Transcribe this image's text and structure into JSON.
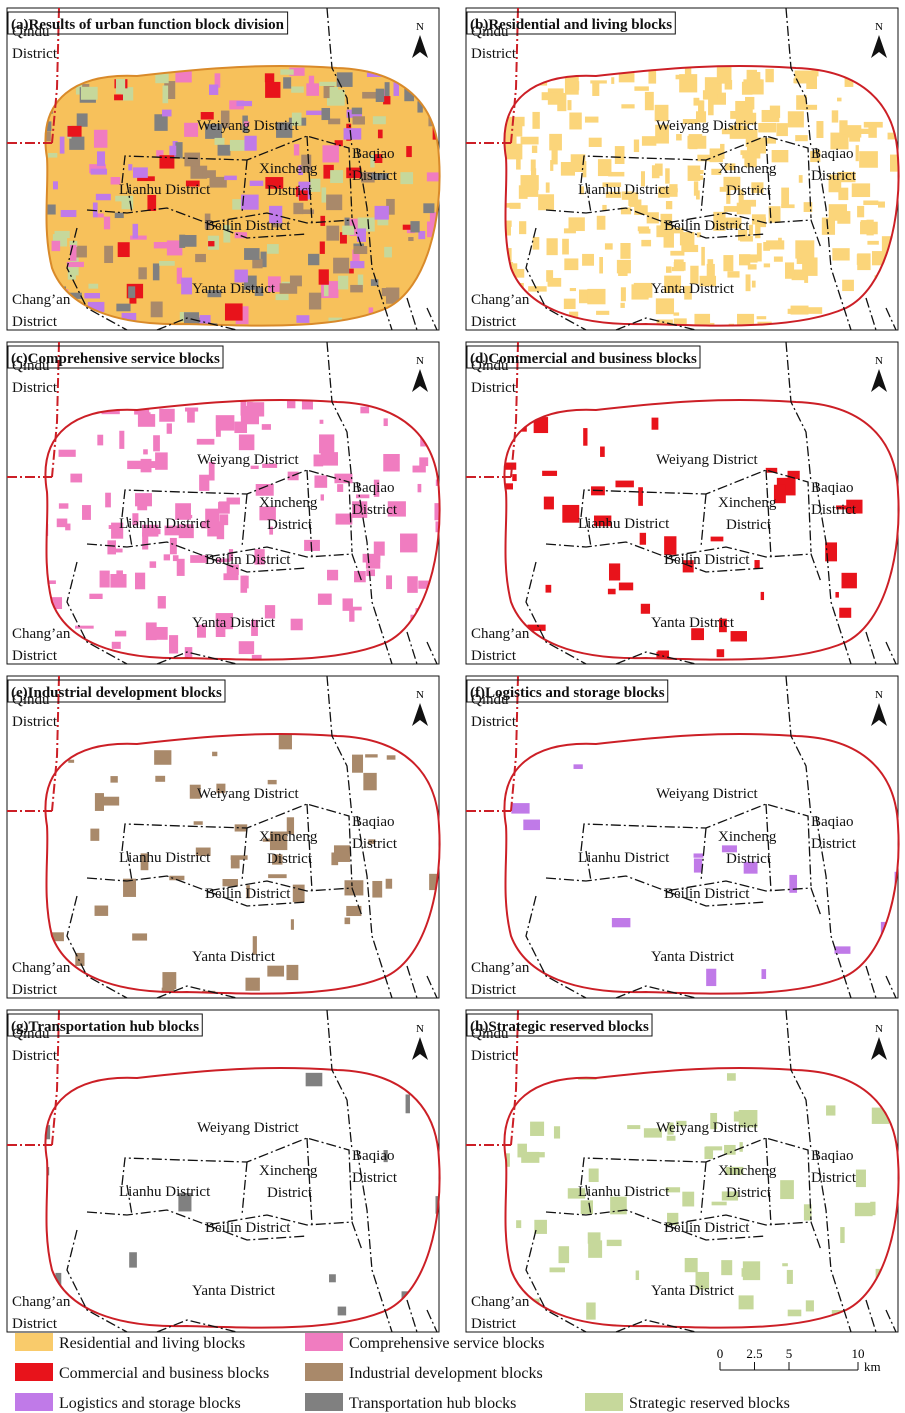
{
  "panels": [
    {
      "title": "(a)Results of urban function block division",
      "color": "#f7c15b"
    },
    {
      "title": "(b)Residential and living blocks",
      "color": "#fbd57a"
    },
    {
      "title": "(c)Comprehensive service blocks",
      "color": "#f07cc0"
    },
    {
      "title": "(d)Commercial and business blocks",
      "color": "#e8131b"
    },
    {
      "title": "(e)Industrial development blocks",
      "color": "#a9896a"
    },
    {
      "title": "(f)Logistics and storage blocks",
      "color": "#c07ae8"
    },
    {
      "title": "(g)Transportation hub blocks",
      "color": "#808080"
    },
    {
      "title": "(h)Strategic reserved blocks",
      "color": "#c6d89b"
    }
  ],
  "north": "N",
  "districts": [
    {
      "lines": [
        "Qindu",
        "District"
      ]
    },
    {
      "lines": [
        "Weiyang District"
      ]
    },
    {
      "lines": [
        "Baqiao",
        "District"
      ]
    },
    {
      "lines": [
        "Xincheng",
        "District"
      ]
    },
    {
      "lines": [
        "Lianhu District"
      ]
    },
    {
      "lines": [
        "Beilin District"
      ]
    },
    {
      "lines": [
        "Yanta District"
      ]
    },
    {
      "lines": [
        "Chang’an",
        "District"
      ]
    }
  ],
  "legend": [
    {
      "name": "Residential and living blocks",
      "color": "#f9cb6b"
    },
    {
      "name": "Comprehensive service blocks",
      "color": "#f07cc0"
    },
    {
      "name": "Commercial and business blocks",
      "color": "#e8131b"
    },
    {
      "name": "Industrial development blocks",
      "color": "#a9896a"
    },
    {
      "name": "Logistics and storage blocks",
      "color": "#c07ae8"
    },
    {
      "name": "Transportation hub blocks",
      "color": "#808080"
    },
    {
      "name": "Strategic reserved blocks",
      "color": "#c6d89b"
    }
  ],
  "scale_bar": {
    "ticks": [
      0,
      2.5,
      5,
      10
    ],
    "unit": "km"
  }
}
